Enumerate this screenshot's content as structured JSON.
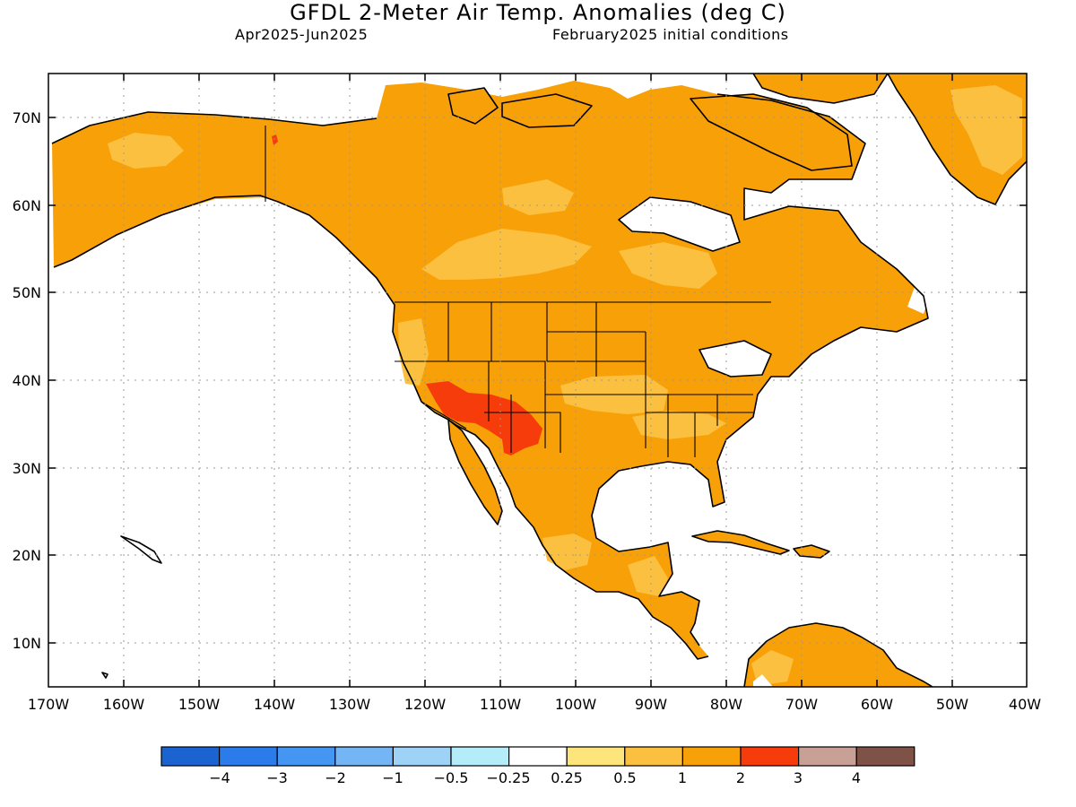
{
  "title": "GFDL 2-Meter Air Temp. Anomalies (deg C)",
  "period": "Apr2025-Jun2025",
  "init": "February2025 initial conditions",
  "lat_labels": [
    "70N",
    "60N",
    "50N",
    "40N",
    "30N",
    "20N",
    "10N"
  ],
  "lon_labels": [
    "170W",
    "160W",
    "150W",
    "140W",
    "130W",
    "120W",
    "110W",
    "100W",
    "90W",
    "80W",
    "70W",
    "60W",
    "50W",
    "40W"
  ],
  "colors": {
    "land_base": "#f8a008",
    "light": "#fcc040",
    "strong": "#f53c0a",
    "outline": "#000000",
    "grid": "#9a9a9a"
  },
  "colorbar": {
    "colors": [
      "#1a63d1",
      "#2c7bea",
      "#4496f2",
      "#74b6f5",
      "#9ed3f7",
      "#b4ecfa",
      "#ffffff",
      "#fde57b",
      "#fcc040",
      "#f8a008",
      "#f53c0a",
      "#c8a096",
      "#7e5246"
    ],
    "labels": [
      "−4",
      "−3",
      "−2",
      "−1",
      "−0.5",
      "−0.25",
      "0.25",
      "0.5",
      "1",
      "2",
      "3",
      "4"
    ]
  }
}
